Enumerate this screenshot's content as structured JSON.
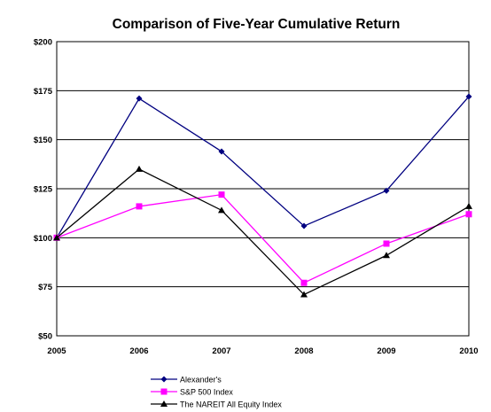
{
  "chart_data": {
    "type": "line",
    "title": "Comparison of Five-Year Cumulative Return",
    "categories": [
      "2005",
      "2006",
      "2007",
      "2008",
      "2009",
      "2010"
    ],
    "ylim": [
      50,
      200
    ],
    "yticks": [
      "$50",
      "$75",
      "$100",
      "$125",
      "$150",
      "$175",
      "$200"
    ],
    "ytick_values": [
      50,
      75,
      100,
      125,
      150,
      175,
      200
    ],
    "grid": "horizontal",
    "legend_placement": "bottom-left",
    "series": [
      {
        "name": "Alexander's",
        "values": [
          100,
          171,
          144,
          106,
          124,
          172
        ],
        "color": "#000080",
        "marker": "diamond"
      },
      {
        "name": "S&P 500 Index",
        "values": [
          100,
          116,
          122,
          77,
          97,
          112
        ],
        "color": "#ff00ff",
        "marker": "square"
      },
      {
        "name": "The NAREIT All Equity Index",
        "values": [
          100,
          135,
          114,
          71,
          91,
          116
        ],
        "color": "#000000",
        "marker": "triangle"
      }
    ]
  }
}
